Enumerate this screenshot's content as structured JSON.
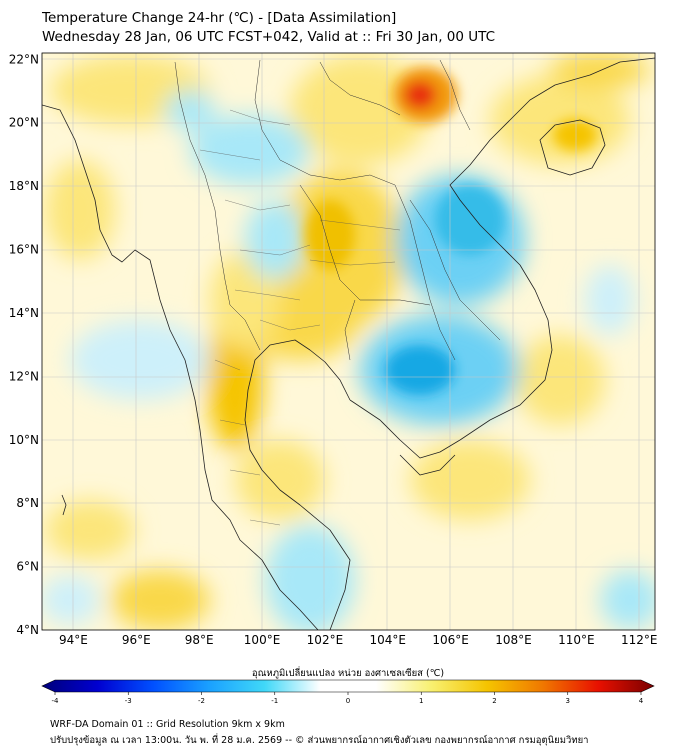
{
  "header": {
    "title": "Temperature Change 24-hr (℃) - [Data Assimilation]",
    "subtitle": "Wednesday 28 Jan, 06 UTC FCST+042, Valid at :: Fri 30 Jan, 00 UTC"
  },
  "map": {
    "lon_range": [
      93,
      112.5
    ],
    "lat_range": [
      4,
      22.2
    ],
    "lat_ticks": [
      "4°N",
      "6°N",
      "8°N",
      "10°N",
      "12°N",
      "14°N",
      "16°N",
      "18°N",
      "20°N",
      "22°N"
    ],
    "lon_ticks": [
      "94°E",
      "96°E",
      "98°E",
      "100°E",
      "102°E",
      "104°E",
      "106°E",
      "108°E",
      "110°E",
      "112°E"
    ],
    "warm_color": "#f5c400",
    "hot_color": "#e8300a",
    "cool_color": "#28b8e8",
    "neutral_color": "#fff8d8"
  },
  "colorbar": {
    "label": "อุณหภูมิเปลี่ยนแปลง หน่วย องศาเซลเซียส (℃)",
    "ticks": [
      "-4",
      "-3",
      "-2",
      "-1",
      "0",
      "1",
      "2",
      "3",
      "4"
    ],
    "min": -4,
    "max": 4,
    "colors": [
      "#00007a",
      "#0000d0",
      "#0050ff",
      "#1aa0ff",
      "#40d8f8",
      "#ffffff",
      "#ffffff",
      "#f8f070",
      "#f5c400",
      "#f07800",
      "#e81000",
      "#7a0000"
    ]
  },
  "footer": {
    "line1": "WRF-DA Domain 01 :: Grid Resolution 9km x 9km",
    "line2": "ปรับปรุงข้อมูล ณ เวลา 13:00น. วัน พ. ที่ 28 ม.ค. 2569 -- © ส่วนพยากรณ์อากาศเชิงตัวเลข กองพยากรณ์อากาศ กรมอุตุนิยมวิทยา"
  }
}
